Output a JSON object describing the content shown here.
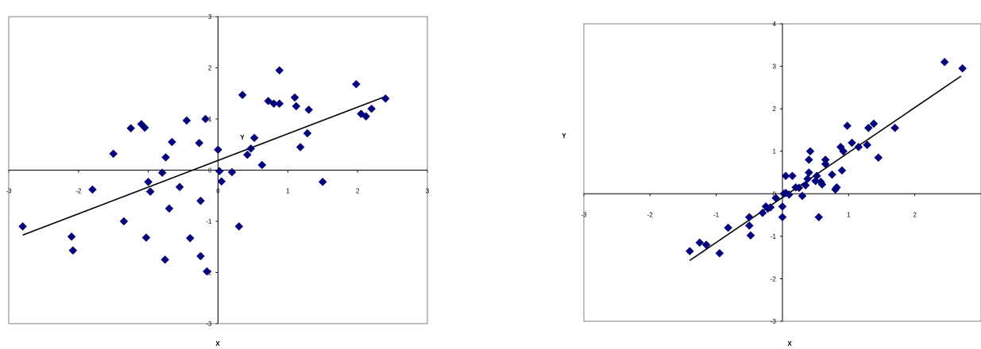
{
  "chart_data": [
    {
      "type": "scatter",
      "title": "",
      "xlabel": "X",
      "ylabel": "Y",
      "xlim": [
        -3,
        3
      ],
      "ylim": [
        -3,
        3
      ],
      "x_ticks": [
        "-3",
        "-2",
        "-1",
        "0",
        "1",
        "2",
        "3"
      ],
      "y_ticks": [
        "-3",
        "-2",
        "-1",
        "0",
        "1",
        "2",
        "3"
      ],
      "grid": false,
      "marker_color": "#000080",
      "trendline": {
        "x": [
          -2.8,
          2.4
        ],
        "y": [
          -1.27,
          1.44
        ]
      },
      "points": [
        [
          -2.8,
          -1.1
        ],
        [
          -2.1,
          -1.3
        ],
        [
          -2.08,
          -1.57
        ],
        [
          -1.8,
          -0.38
        ],
        [
          -1.5,
          0.32
        ],
        [
          -1.35,
          -1.0
        ],
        [
          -1.25,
          0.82
        ],
        [
          -1.1,
          0.9
        ],
        [
          -1.05,
          0.83
        ],
        [
          -1.03,
          -1.32
        ],
        [
          -1.0,
          -0.23
        ],
        [
          -0.97,
          -0.42
        ],
        [
          -0.8,
          -0.05
        ],
        [
          -0.75,
          0.25
        ],
        [
          -0.76,
          -1.75
        ],
        [
          -0.7,
          -0.75
        ],
        [
          -0.66,
          0.55
        ],
        [
          -0.55,
          -0.33
        ],
        [
          -0.45,
          0.97
        ],
        [
          -0.4,
          -1.33
        ],
        [
          -0.27,
          0.53
        ],
        [
          -0.25,
          -0.6
        ],
        [
          -0.25,
          -1.68
        ],
        [
          -0.18,
          1.0
        ],
        [
          -0.16,
          -1.98
        ],
        [
          0.0,
          0.4
        ],
        [
          0.02,
          -0.02
        ],
        [
          0.05,
          -0.22
        ],
        [
          0.2,
          -0.04
        ],
        [
          0.3,
          -1.1
        ],
        [
          0.35,
          1.47
        ],
        [
          0.42,
          0.3
        ],
        [
          0.47,
          0.42
        ],
        [
          0.52,
          0.63
        ],
        [
          0.63,
          0.1
        ],
        [
          0.72,
          1.35
        ],
        [
          0.8,
          1.3
        ],
        [
          0.88,
          1.3
        ],
        [
          0.88,
          1.95
        ],
        [
          1.1,
          1.42
        ],
        [
          1.12,
          1.25
        ],
        [
          1.18,
          0.45
        ],
        [
          1.3,
          1.18
        ],
        [
          1.28,
          0.72
        ],
        [
          1.5,
          -0.23
        ],
        [
          1.98,
          1.68
        ],
        [
          2.05,
          1.1
        ],
        [
          2.12,
          1.05
        ],
        [
          2.2,
          1.2
        ],
        [
          2.4,
          1.4
        ]
      ]
    },
    {
      "type": "scatter",
      "title": "",
      "xlabel": "X",
      "ylabel": "Y",
      "xlim": [
        -3,
        3
      ],
      "ylim": [
        -3,
        4
      ],
      "x_ticks": [
        "-3",
        "-2",
        "-1",
        "1",
        "2"
      ],
      "y_ticks": [
        "-3",
        "-2",
        "-1",
        "0",
        "1",
        "2",
        "3",
        "4"
      ],
      "grid": false,
      "marker_color": "#000080",
      "trendline": {
        "x": [
          -1.4,
          2.7
        ],
        "y": [
          -1.57,
          2.77
        ]
      },
      "points": [
        [
          -1.4,
          -1.35
        ],
        [
          -1.25,
          -1.15
        ],
        [
          -1.15,
          -1.2
        ],
        [
          -0.95,
          -1.4
        ],
        [
          -0.82,
          -0.8
        ],
        [
          -0.5,
          -0.55
        ],
        [
          -0.5,
          -0.75
        ],
        [
          -0.48,
          -0.98
        ],
        [
          -0.3,
          -0.45
        ],
        [
          -0.25,
          -0.3
        ],
        [
          -0.22,
          -0.35
        ],
        [
          -0.18,
          -0.32
        ],
        [
          -0.1,
          -0.1
        ],
        [
          0.0,
          -0.3
        ],
        [
          0.0,
          -0.55
        ],
        [
          0.02,
          0.0
        ],
        [
          0.05,
          0.02
        ],
        [
          0.05,
          0.42
        ],
        [
          0.1,
          -0.02
        ],
        [
          0.15,
          0.42
        ],
        [
          0.2,
          0.15
        ],
        [
          0.25,
          0.14
        ],
        [
          0.3,
          -0.05
        ],
        [
          0.35,
          0.2
        ],
        [
          0.38,
          0.35
        ],
        [
          0.4,
          0.5
        ],
        [
          0.4,
          0.8
        ],
        [
          0.42,
          1.0
        ],
        [
          0.5,
          0.3
        ],
        [
          0.52,
          0.42
        ],
        [
          0.55,
          -0.55
        ],
        [
          0.58,
          0.28
        ],
        [
          0.6,
          0.22
        ],
        [
          0.65,
          0.8
        ],
        [
          0.65,
          0.7
        ],
        [
          0.75,
          0.45
        ],
        [
          0.8,
          0.1
        ],
        [
          0.82,
          0.15
        ],
        [
          0.88,
          1.1
        ],
        [
          0.9,
          0.55
        ],
        [
          0.92,
          1.0
        ],
        [
          0.98,
          1.6
        ],
        [
          1.05,
          1.2
        ],
        [
          1.15,
          1.1
        ],
        [
          1.28,
          1.15
        ],
        [
          1.3,
          1.55
        ],
        [
          1.38,
          1.65
        ],
        [
          1.45,
          0.85
        ],
        [
          1.7,
          1.55
        ],
        [
          2.45,
          3.1
        ],
        [
          2.72,
          2.95
        ]
      ]
    }
  ]
}
